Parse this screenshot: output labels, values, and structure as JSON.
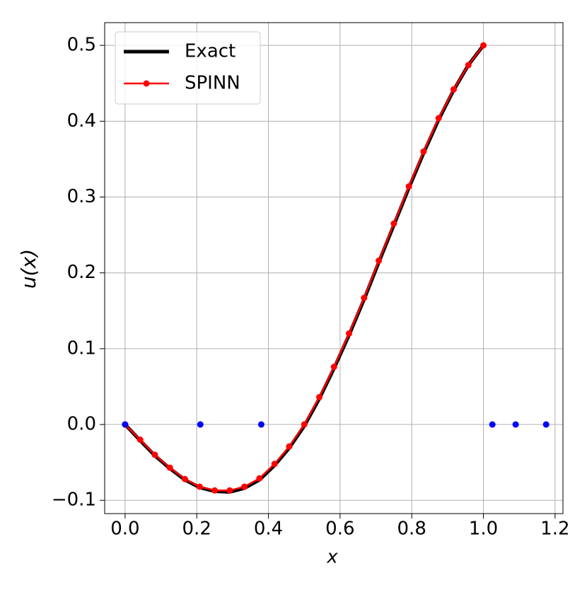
{
  "chart_data": {
    "type": "line",
    "xlabel": "x",
    "ylabel": "u(x)",
    "xlim": [
      -0.057,
      1.222
    ],
    "ylim": [
      -0.1175,
      0.53
    ],
    "xticks": [
      {
        "value": 0,
        "label": "0.0"
      },
      0.2,
      0.4,
      0.6,
      0.8,
      {
        "value": 1,
        "label": "1.0"
      },
      1.2
    ],
    "yticks": [
      {
        "value": -0.1,
        "label": "−0.1"
      },
      {
        "value": 0,
        "label": "0.0"
      },
      0.1,
      0.2,
      0.3,
      0.4,
      0.5
    ],
    "grid": true,
    "legend": "upper left",
    "series": [
      {
        "name": "Exact",
        "color": "#000000",
        "style": "thick-line",
        "x": [
          0,
          0.042,
          0.083,
          0.125,
          0.167,
          0.208,
          0.25,
          0.292,
          0.333,
          0.375,
          0.417,
          0.458,
          0.5,
          0.542,
          0.583,
          0.625,
          0.667,
          0.708,
          0.75,
          0.792,
          0.833,
          0.875,
          0.917,
          0.958,
          1
        ],
        "values": [
          0,
          -0.021,
          -0.041,
          -0.058,
          -0.073,
          -0.083,
          -0.088,
          -0.089,
          -0.084,
          -0.073,
          -0.054,
          -0.031,
          -0.002,
          0.034,
          0.074,
          0.118,
          0.165,
          0.214,
          0.263,
          0.312,
          0.358,
          0.402,
          0.441,
          0.474,
          0.5
        ]
      },
      {
        "name": "SPINN",
        "color": "#ff0000",
        "style": "line-markers",
        "x": [
          0,
          0.042,
          0.083,
          0.125,
          0.167,
          0.208,
          0.25,
          0.292,
          0.333,
          0.375,
          0.417,
          0.458,
          0.5,
          0.542,
          0.583,
          0.625,
          0.667,
          0.708,
          0.75,
          0.792,
          0.833,
          0.875,
          0.917,
          0.958,
          1
        ],
        "values": [
          0,
          -0.02,
          -0.04,
          -0.057,
          -0.072,
          -0.082,
          -0.087,
          -0.087,
          -0.082,
          -0.071,
          -0.052,
          -0.029,
          0,
          0.036,
          0.076,
          0.12,
          0.167,
          0.216,
          0.265,
          0.314,
          0.36,
          0.404,
          0.442,
          0.474,
          0.5
        ]
      },
      {
        "color": "#0000ff",
        "style": "markers",
        "x": [
          0,
          0.21,
          0.38,
          1.025,
          1.09,
          1.175
        ],
        "values": [
          0,
          0,
          0,
          0,
          0,
          0
        ]
      }
    ]
  }
}
